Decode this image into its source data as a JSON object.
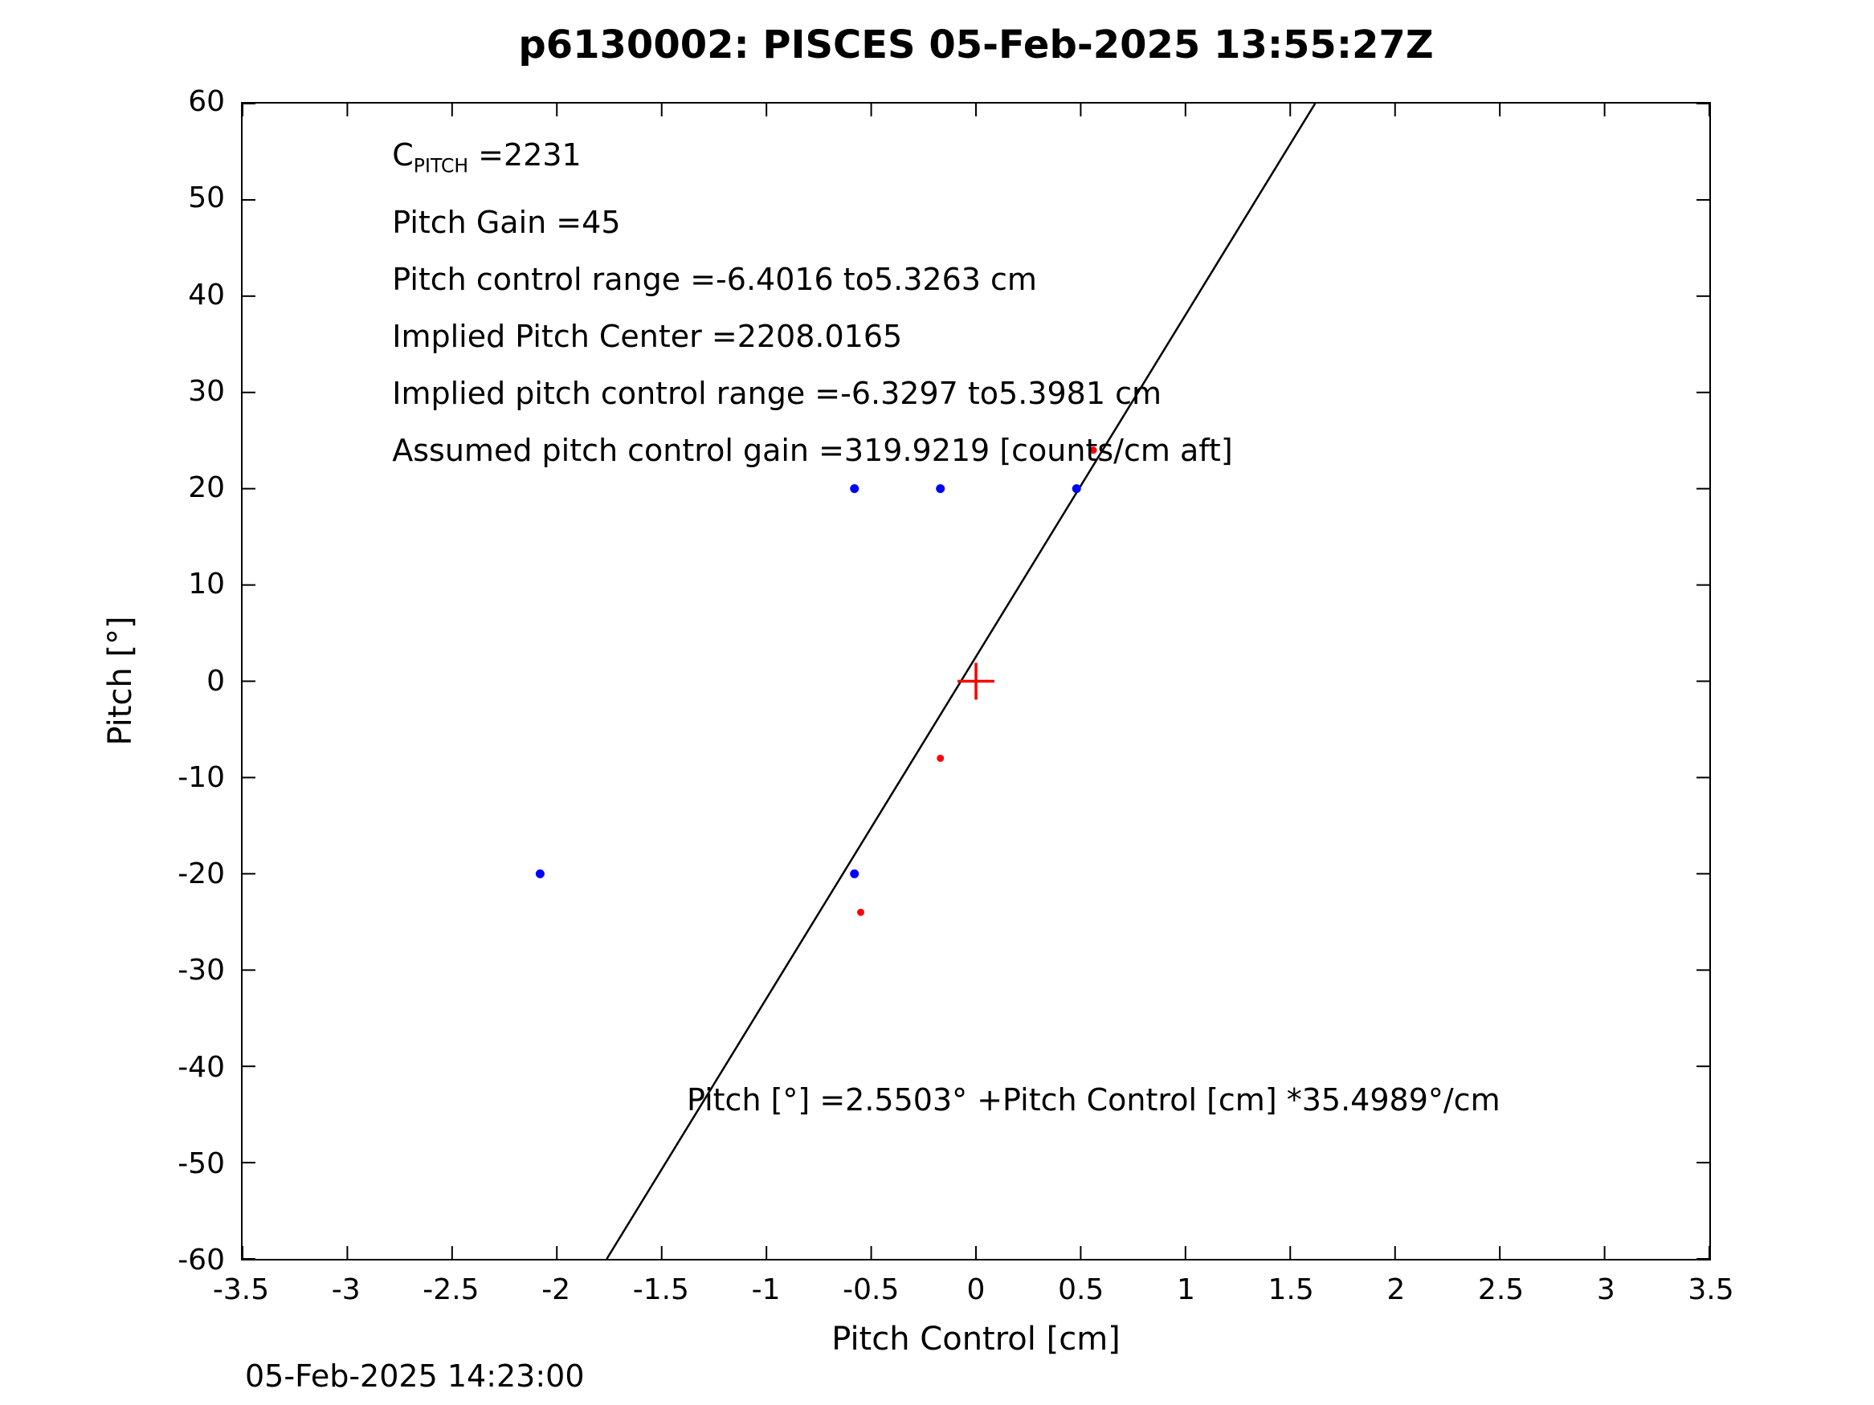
{
  "figure": {
    "timestamp": "05-Feb-2025 14:23:00"
  },
  "chart_data": {
    "type": "scatter",
    "title": "p6130002: PISCES 05-Feb-2025 13:55:27Z",
    "xlabel": "Pitch Control [cm]",
    "ylabel": "Pitch [°]",
    "xlim": [
      -3.5,
      3.5
    ],
    "ylim": [
      -60,
      60
    ],
    "xticks": [
      -3.5,
      -3,
      -2.5,
      -2,
      -1.5,
      -1,
      -0.5,
      0,
      0.5,
      1,
      1.5,
      2,
      2.5,
      3,
      3.5
    ],
    "yticks": [
      -60,
      -50,
      -40,
      -30,
      -20,
      -10,
      0,
      10,
      20,
      30,
      40,
      50,
      60
    ],
    "grid": false,
    "legend_position": "none",
    "series": [
      {
        "name": "blue-data-points",
        "color": "#0000ff",
        "marker": "dot",
        "radius": 5.5,
        "points": [
          [
            -0.58,
            20
          ],
          [
            -0.17,
            20
          ],
          [
            0.48,
            20
          ],
          [
            -2.08,
            -20
          ],
          [
            -0.58,
            -20
          ]
        ]
      },
      {
        "name": "red-data-points",
        "color": "#ff0000",
        "marker": "dot",
        "radius": 4.5,
        "points": [
          [
            0.56,
            24
          ],
          [
            -0.17,
            -8
          ],
          [
            -0.55,
            -24
          ]
        ]
      },
      {
        "name": "origin-cross",
        "color": "#ff0000",
        "marker": "plus",
        "radius": 23,
        "points": [
          [
            0,
            0
          ]
        ]
      }
    ],
    "fit_line": {
      "slope": 35.4989,
      "intercept": 2.5503,
      "color": "#000000"
    },
    "annotations": [
      {
        "segments": [
          {
            "text": "C"
          },
          {
            "text": "PITCH",
            "sub": true
          },
          {
            "text": " =2231"
          }
        ]
      },
      {
        "segments": [
          {
            "text": "Pitch Gain =45"
          }
        ]
      },
      {
        "segments": [
          {
            "text": "Pitch control range =-6.4016 to5.3263 cm"
          }
        ]
      },
      {
        "segments": [
          {
            "text": "Implied Pitch Center =2208.0165"
          }
        ]
      },
      {
        "segments": [
          {
            "text": "Implied pitch control range =-6.3297 to5.3981 cm"
          }
        ]
      },
      {
        "segments": [
          {
            "text": "Assumed pitch control gain =319.9219 [counts/cm aft]"
          }
        ]
      }
    ],
    "equation": {
      "text": "Pitch [°] =2.5503° +Pitch Control [cm] *35.4989°/cm",
      "x": -1.38,
      "y": -43.5
    }
  }
}
